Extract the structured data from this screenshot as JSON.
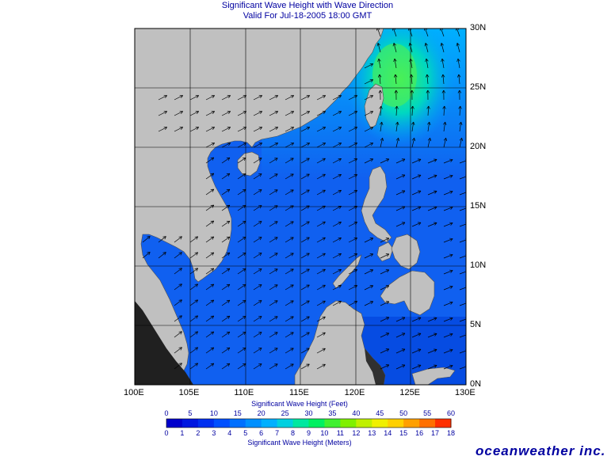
{
  "title": "Significant Wave Height with Wave Direction",
  "subtitle": "Valid For Jul-18-2005 18:00 GMT",
  "longitude_labels": [
    "100E",
    "105E",
    "110E",
    "115E",
    "120E",
    "125E",
    "130E"
  ],
  "latitude_labels": [
    "30N",
    "25N",
    "20N",
    "15N",
    "10N",
    "5N",
    "0N"
  ],
  "colorbar": {
    "feet_label": "Significant Wave Height (Feet)",
    "meters_label": "Significant Wave Height (Meters)",
    "feet_ticks": [
      "0",
      "5",
      "10",
      "15",
      "20",
      "25",
      "30",
      "35",
      "40",
      "45",
      "50",
      "55",
      "60"
    ],
    "meter_ticks": [
      "0",
      "1",
      "2",
      "3",
      "4",
      "5",
      "6",
      "7",
      "8",
      "9",
      "10",
      "11",
      "12",
      "13",
      "14",
      "15",
      "16",
      "17",
      "18"
    ],
    "colors": [
      "#0000cc",
      "#0018e0",
      "#0030f0",
      "#0050ff",
      "#0070ff",
      "#0090ff",
      "#00b0ff",
      "#00d0e0",
      "#00e8a0",
      "#00f060",
      "#40f030",
      "#80f000",
      "#c0f000",
      "#f0f000",
      "#ffd000",
      "#ffa000",
      "#ff7000",
      "#ff3000"
    ]
  },
  "map_extent": {
    "lon": [
      100,
      130
    ],
    "lat": [
      0,
      30
    ]
  },
  "colors": {
    "land": "#c0c0c0",
    "sea": "#1060f0",
    "grid": "#000000",
    "arrows": "#000000"
  },
  "logo": "oceanweather inc."
}
